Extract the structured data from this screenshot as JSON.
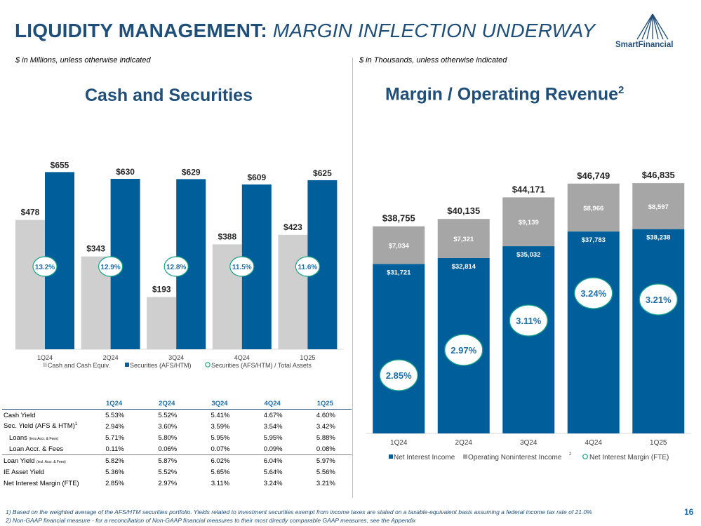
{
  "header": {
    "title_part1": "LIQUIDITY MANAGEMENT:",
    "title_part2": "MARGIN INFLECTION UNDERWAY",
    "logo_text": "SmartFinancial",
    "left_unit_note": "$ in Millions, unless otherwise indicated",
    "right_unit_note": "$ in Thousands, unless otherwise indicated"
  },
  "left_panel": {
    "title": "Cash and Securities"
  },
  "right_panel": {
    "title": "Margin / Operating Revenue",
    "title_sup": "2"
  },
  "colors": {
    "navy": "#1f4e79",
    "blue": "#005f9a",
    "gray": "#a6a6a6",
    "lightgray": "#cfcfcf",
    "teal": "#17a589"
  },
  "chart_data": [
    {
      "type": "bar",
      "title": "Cash and Securities",
      "categories": [
        "1Q24",
        "2Q24",
        "3Q24",
        "4Q24",
        "1Q25"
      ],
      "series": [
        {
          "name": "Cash and Cash Equiv.",
          "values": [
            478,
            343,
            193,
            388,
            423
          ],
          "labels": [
            "$478",
            "$343",
            "$193",
            "$388",
            "$423"
          ]
        },
        {
          "name": "Securities (AFS/HTM)",
          "values": [
            655,
            630,
            629,
            609,
            625
          ],
          "labels": [
            "$655",
            "$630",
            "$629",
            "$609",
            "$625"
          ]
        }
      ],
      "ratio_series": {
        "name": "Securities (AFS/HTM) / Total Assets",
        "labels": [
          "13.2%",
          "12.9%",
          "12.8%",
          "11.5%",
          "11.6%"
        ]
      },
      "ylim": [
        0,
        700
      ]
    },
    {
      "type": "bar",
      "stacked": true,
      "title": "Margin / Operating Revenue",
      "categories": [
        "1Q24",
        "2Q24",
        "3Q24",
        "4Q24",
        "1Q25"
      ],
      "series": [
        {
          "name": "Net Interest Income",
          "values": [
            31721,
            32814,
            35032,
            37783,
            38238
          ],
          "labels": [
            "$31,721",
            "$32,814",
            "$35,032",
            "$37,783",
            "$38,238"
          ]
        },
        {
          "name": "Operating Noninterest Income",
          "name_sup": "2",
          "values": [
            7034,
            7321,
            9139,
            8966,
            8597
          ],
          "labels": [
            "$7,034",
            "$7,321",
            "$9,139",
            "$8,966",
            "$8,597"
          ]
        }
      ],
      "totals": [
        "$38,755",
        "$40,135",
        "$44,171",
        "$46,749",
        "$46,835"
      ],
      "margin_series": {
        "name": "Net Interest Margin (FTE)",
        "values": [
          2.85,
          2.97,
          3.11,
          3.24,
          3.21
        ],
        "labels": [
          "2.85%",
          "2.97%",
          "3.11%",
          "3.24%",
          "3.21%"
        ]
      },
      "ylim": [
        0,
        50000
      ]
    }
  ],
  "table": {
    "columns": [
      "1Q24",
      "2Q24",
      "3Q24",
      "4Q24",
      "1Q25"
    ],
    "rows": [
      {
        "label": "Cash Yield",
        "values": [
          "5.53%",
          "5.52%",
          "5.41%",
          "4.67%",
          "4.60%"
        ]
      },
      {
        "label": "Sec. Yield (AFS & HTM)",
        "sup": "1",
        "values": [
          "2.94%",
          "3.60%",
          "3.59%",
          "3.54%",
          "3.42%"
        ]
      },
      {
        "label": "Loans",
        "note": "(less Accr. & Fees)",
        "values": [
          "5.71%",
          "5.80%",
          "5.95%",
          "5.95%",
          "5.88%"
        ]
      },
      {
        "label": "Loan Accr. & Fees",
        "values": [
          "0.11%",
          "0.06%",
          "0.07%",
          "0.09%",
          "0.08%"
        ]
      },
      {
        "label": "Loan Yield",
        "note": "(incl. Accr. & Fees)",
        "values": [
          "5.82%",
          "5.87%",
          "6.02%",
          "6.04%",
          "5.97%"
        ]
      },
      {
        "label": "IE Asset Yield",
        "values": [
          "5.36%",
          "5.52%",
          "5.65%",
          "5.64%",
          "5.56%"
        ]
      },
      {
        "label": "Net Interest Margin (FTE)",
        "values": [
          "2.85%",
          "2.97%",
          "3.11%",
          "3.24%",
          "3.21%"
        ]
      }
    ]
  },
  "footnotes": [
    "1)  Based on the weighted average of the AFS/HTM securities portfolio. Yields related to investment securities exempt from income taxes are stated on a taxable-equivalent basis assuming a federal income tax rate of 21.0%",
    "2)  Non-GAAP financial measure - for a reconciliation of Non-GAAP financial measures to their most directly comparable GAAP measures, see the Appendix"
  ],
  "page_number": "16"
}
